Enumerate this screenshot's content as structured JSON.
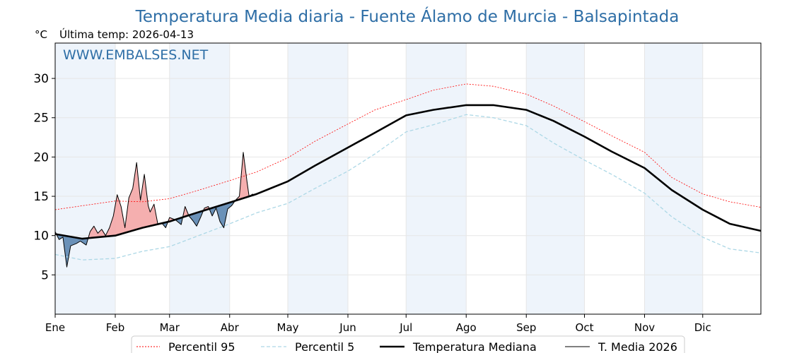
{
  "chart_data": {
    "type": "line",
    "title": "Temperatura Media diaria - Fuente Álamo de Murcia - Balsapintada",
    "ylabel": "°C",
    "last_temp_label": "Última temp: 2026-04-13",
    "watermark": "WWW.EMBALSES.NET",
    "months": [
      "Ene",
      "Feb",
      "Mar",
      "Abr",
      "May",
      "Jun",
      "Jul",
      "Ago",
      "Sep",
      "Oct",
      "Nov",
      "Dic"
    ],
    "ylim": [
      0,
      34.5
    ],
    "yticks": [
      5,
      10,
      15,
      20,
      25,
      30
    ],
    "grid": true,
    "legend_position": "bottom-center",
    "legend": [
      "Percentil 95",
      "Percentil 5",
      "Temperatura Mediana",
      "T. Media 2026"
    ],
    "colors": {
      "p95": "#ff0000",
      "p5": "#add8e6",
      "median": "#000000",
      "current": "#000000",
      "above_fill": "#f4a6a6",
      "below_fill": "#5b86b0",
      "title": "#2e6ea6",
      "band": "#eef4fb"
    },
    "series": [
      {
        "name": "Temperatura Mediana",
        "days": [
          1,
          15,
          32,
          46,
          60,
          74,
          91,
          105,
          121,
          135,
          152,
          166,
          182,
          196,
          213,
          227,
          244,
          258,
          274,
          288,
          305,
          319,
          335,
          349,
          365
        ],
        "values": [
          10.2,
          9.6,
          10.0,
          11.0,
          11.8,
          12.9,
          14.2,
          15.3,
          16.9,
          18.9,
          21.2,
          23.1,
          25.3,
          26.0,
          26.6,
          26.6,
          26.0,
          24.6,
          22.6,
          20.7,
          18.6,
          15.8,
          13.3,
          11.5,
          10.6
        ]
      },
      {
        "name": "Percentil 95",
        "days": [
          1,
          15,
          32,
          46,
          60,
          74,
          91,
          105,
          121,
          135,
          152,
          166,
          182,
          196,
          213,
          227,
          244,
          258,
          274,
          288,
          305,
          319,
          335,
          349,
          365
        ],
        "values": [
          13.3,
          13.8,
          14.4,
          14.3,
          14.7,
          15.7,
          17.0,
          18.1,
          19.9,
          22.0,
          24.2,
          26.0,
          27.3,
          28.5,
          29.3,
          29.0,
          28.0,
          26.5,
          24.5,
          22.7,
          20.6,
          17.4,
          15.3,
          14.3,
          13.6
        ]
      },
      {
        "name": "Percentil 5",
        "days": [
          1,
          15,
          32,
          46,
          60,
          74,
          91,
          105,
          121,
          135,
          152,
          166,
          182,
          196,
          213,
          227,
          244,
          258,
          274,
          288,
          305,
          319,
          335,
          349,
          365
        ],
        "values": [
          7.6,
          6.9,
          7.1,
          8.0,
          8.6,
          9.9,
          11.5,
          12.9,
          14.1,
          16.0,
          18.2,
          20.4,
          23.2,
          24.1,
          25.4,
          25.0,
          24.0,
          21.8,
          19.6,
          17.8,
          15.4,
          12.4,
          9.8,
          8.3,
          7.8
        ]
      },
      {
        "name": "T. Media 2026",
        "days": [
          1,
          3,
          5,
          7,
          9,
          12,
          14,
          17,
          19,
          21,
          23,
          25,
          27,
          29,
          31,
          33,
          35,
          37,
          39,
          41,
          43,
          45,
          47,
          49,
          50,
          52,
          54,
          56,
          58,
          60,
          63,
          66,
          68,
          70,
          72,
          74,
          76,
          78,
          80,
          82,
          84,
          86,
          88,
          90,
          92,
          94,
          96,
          98,
          100,
          101,
          103
        ],
        "values": [
          10.5,
          9.5,
          9.8,
          6.0,
          8.7,
          9.0,
          9.3,
          8.8,
          10.5,
          11.2,
          10.3,
          10.8,
          10.0,
          11.0,
          12.5,
          15.2,
          13.7,
          11.0,
          14.8,
          16.0,
          19.3,
          14.5,
          17.8,
          13.8,
          13.0,
          14.0,
          11.4,
          11.6,
          11.0,
          12.3,
          12.0,
          11.4,
          13.7,
          12.5,
          11.9,
          11.2,
          12.3,
          13.5,
          13.7,
          12.5,
          13.5,
          11.8,
          11.0,
          13.4,
          13.8,
          14.5,
          15.0,
          20.6,
          16.8,
          15.0,
          15.3
        ]
      }
    ]
  }
}
